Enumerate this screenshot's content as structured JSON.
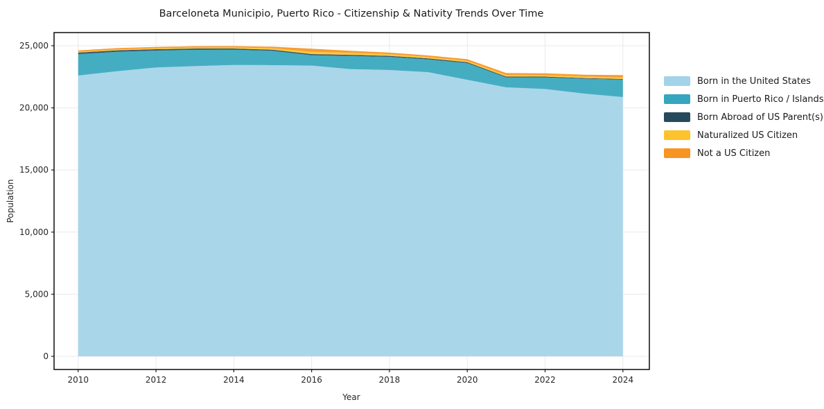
{
  "chart_data": {
    "type": "area",
    "stacked": true,
    "title": "Barceloneta Municipio, Puerto Rico - Citizenship & Nativity Trends Over Time",
    "xlabel": "Year",
    "ylabel": "Population",
    "x": [
      2010,
      2011,
      2012,
      2013,
      2014,
      2015,
      2016,
      2017,
      2018,
      2019,
      2020,
      2021,
      2022,
      2023,
      2024
    ],
    "series": [
      {
        "name": "Born in the United States",
        "color": "#a3d3e8",
        "values": [
          22600,
          22950,
          23250,
          23360,
          23450,
          23440,
          23400,
          23120,
          23050,
          22870,
          22260,
          21650,
          21520,
          21150,
          20870
        ]
      },
      {
        "name": "Born in Puerto Rico / Islands",
        "color": "#35a6bd",
        "values": [
          1720,
          1560,
          1360,
          1310,
          1230,
          1150,
          835,
          1060,
          1050,
          1030,
          1340,
          800,
          930,
          1190,
          1400
        ]
      },
      {
        "name": "Born Abroad of US Parent(s)",
        "color": "#264a5c",
        "values": [
          130,
          120,
          110,
          105,
          95,
          90,
          95,
          90,
          85,
          80,
          75,
          70,
          65,
          60,
          55
        ]
      },
      {
        "name": "Naturalized US Citizen",
        "color": "#fcc32d",
        "values": [
          60,
          70,
          75,
          85,
          90,
          120,
          185,
          160,
          130,
          110,
          105,
          120,
          120,
          120,
          120
        ]
      },
      {
        "name": "Not a US Citizen",
        "color": "#f79422",
        "values": [
          115,
          110,
          105,
          105,
          110,
          120,
          245,
          165,
          135,
          130,
          140,
          160,
          145,
          150,
          195
        ]
      }
    ],
    "xticks": [
      2010,
      2012,
      2014,
      2016,
      2018,
      2020,
      2022,
      2024
    ],
    "xtick_labels": [
      "2010",
      "2012",
      "2014",
      "2016",
      "2018",
      "2020",
      "2022",
      "2024"
    ],
    "yticks": [
      0,
      5000,
      10000,
      15000,
      20000,
      25000
    ],
    "ytick_labels": [
      "0",
      "5,000",
      "10,000",
      "15,000",
      "20,000",
      "25,000"
    ],
    "xlim": [
      2009.38,
      2024.68
    ],
    "ylim": [
      -1060,
      26060
    ],
    "grid": true,
    "legend_position": "right"
  },
  "colors": {
    "background": "#ffffff",
    "grid": "#e9e9e9",
    "spine": "#1a1a1a",
    "tick": "#1a1a1a",
    "text": "#262626"
  }
}
